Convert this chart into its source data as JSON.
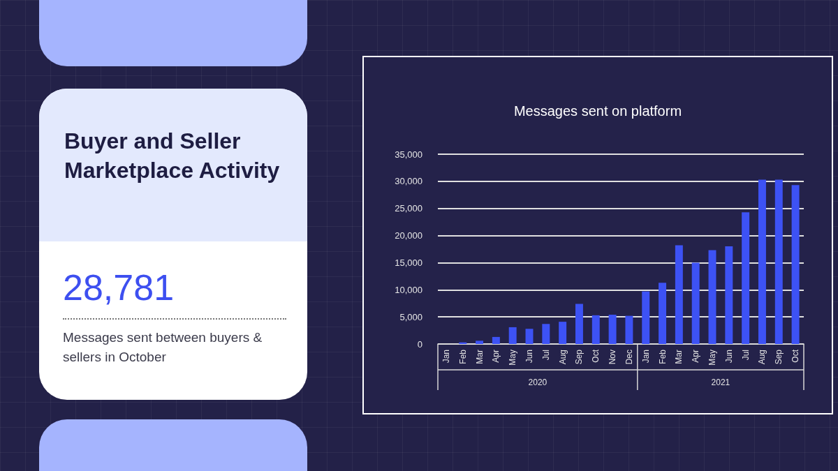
{
  "chart_data": [
    {
      "type": "other",
      "title": "Buyer and Seller Marketplace Activity",
      "annotations": [
        "28,781",
        "Messages sent between buyers & sellers in October"
      ]
    },
    {
      "type": "bar",
      "title": "Messages sent on platform",
      "categories": [
        "Jan",
        "Feb",
        "Mar",
        "Apr",
        "May",
        "Jun",
        "Jul",
        "Aug",
        "Sep",
        "Oct",
        "Nov",
        "Dec",
        "Jan",
        "Feb",
        "Mar",
        "Apr",
        "May",
        "Jun",
        "Jul",
        "Aug",
        "Sep",
        "Oct"
      ],
      "values": [
        0,
        300,
        600,
        1300,
        3100,
        2800,
        3700,
        4100,
        7400,
        5300,
        5400,
        5200,
        9700,
        11300,
        18200,
        15000,
        17300,
        18000,
        24300,
        30300,
        30300,
        29300
      ],
      "color": "#3d52f5",
      "ylim": [
        0,
        35000
      ],
      "yticks": [
        0,
        {
          "value": 5000,
          "label": "5,000"
        },
        {
          "value": 10000,
          "label": "10,000"
        },
        {
          "value": 15000,
          "label": "15,000"
        },
        {
          "value": 20000,
          "label": "20,000"
        },
        {
          "value": 25000,
          "label": "25,000"
        },
        {
          "value": 30000,
          "label": "30,000"
        },
        {
          "value": 35000,
          "label": "35,000"
        }
      ],
      "grid": "y",
      "annotations": [
        "2020",
        "2021"
      ]
    }
  ]
}
